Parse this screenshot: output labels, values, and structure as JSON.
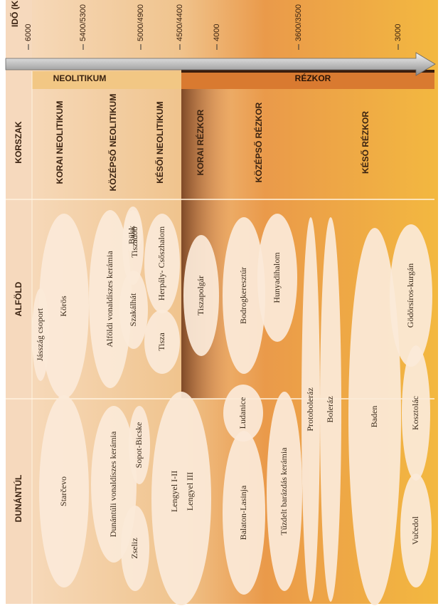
{
  "time_axis": {
    "title": "IDŐ (Kr. e.)",
    "ticks": [
      "6000",
      "5400/5300",
      "5000/4900",
      "4500/4400",
      "4000",
      "3600/3500",
      "3000"
    ]
  },
  "eras": [
    "NEOLITIKUM",
    "RÉZKOR"
  ],
  "row_labels": [
    "KORSZAK",
    "ALFÖLD",
    "DUNÁNTÚL"
  ],
  "periods": [
    "KORAI NEOLITIKUM",
    "KÖZÉPSŐ NEOLITIKUM",
    "KÉSŐI NEOLITIKUM",
    "KORAI RÉZKOR",
    "KÖZÉPSŐ RÉZKOR",
    "KÉSŐ RÉZKOR"
  ],
  "cultures": [
    "Jásszág csoport",
    "Körös",
    "Alföldi vonaldíszes kerámia",
    "Tiszadob",
    "Bükk",
    "Szakálhát",
    "Herpály- Csőszhalom",
    "Tisza",
    "Tiszapolgár",
    "Bodrogkeresztúr",
    "Hunyadihalom",
    "Protoboleráz",
    "Boleráz",
    "Baden",
    "Gödörsíros-kurgán",
    "Kosztolác",
    "Vučedol",
    "Ludanice",
    "Starčevo",
    "Dunántúli vonaldíszes kerámia",
    "Sopot-Bicske",
    "Zseliz",
    "Lengyel I-II",
    "Lengyel III",
    "Balaton-Lasinja",
    "Tűzdelt barázdás kerámia"
  ]
}
